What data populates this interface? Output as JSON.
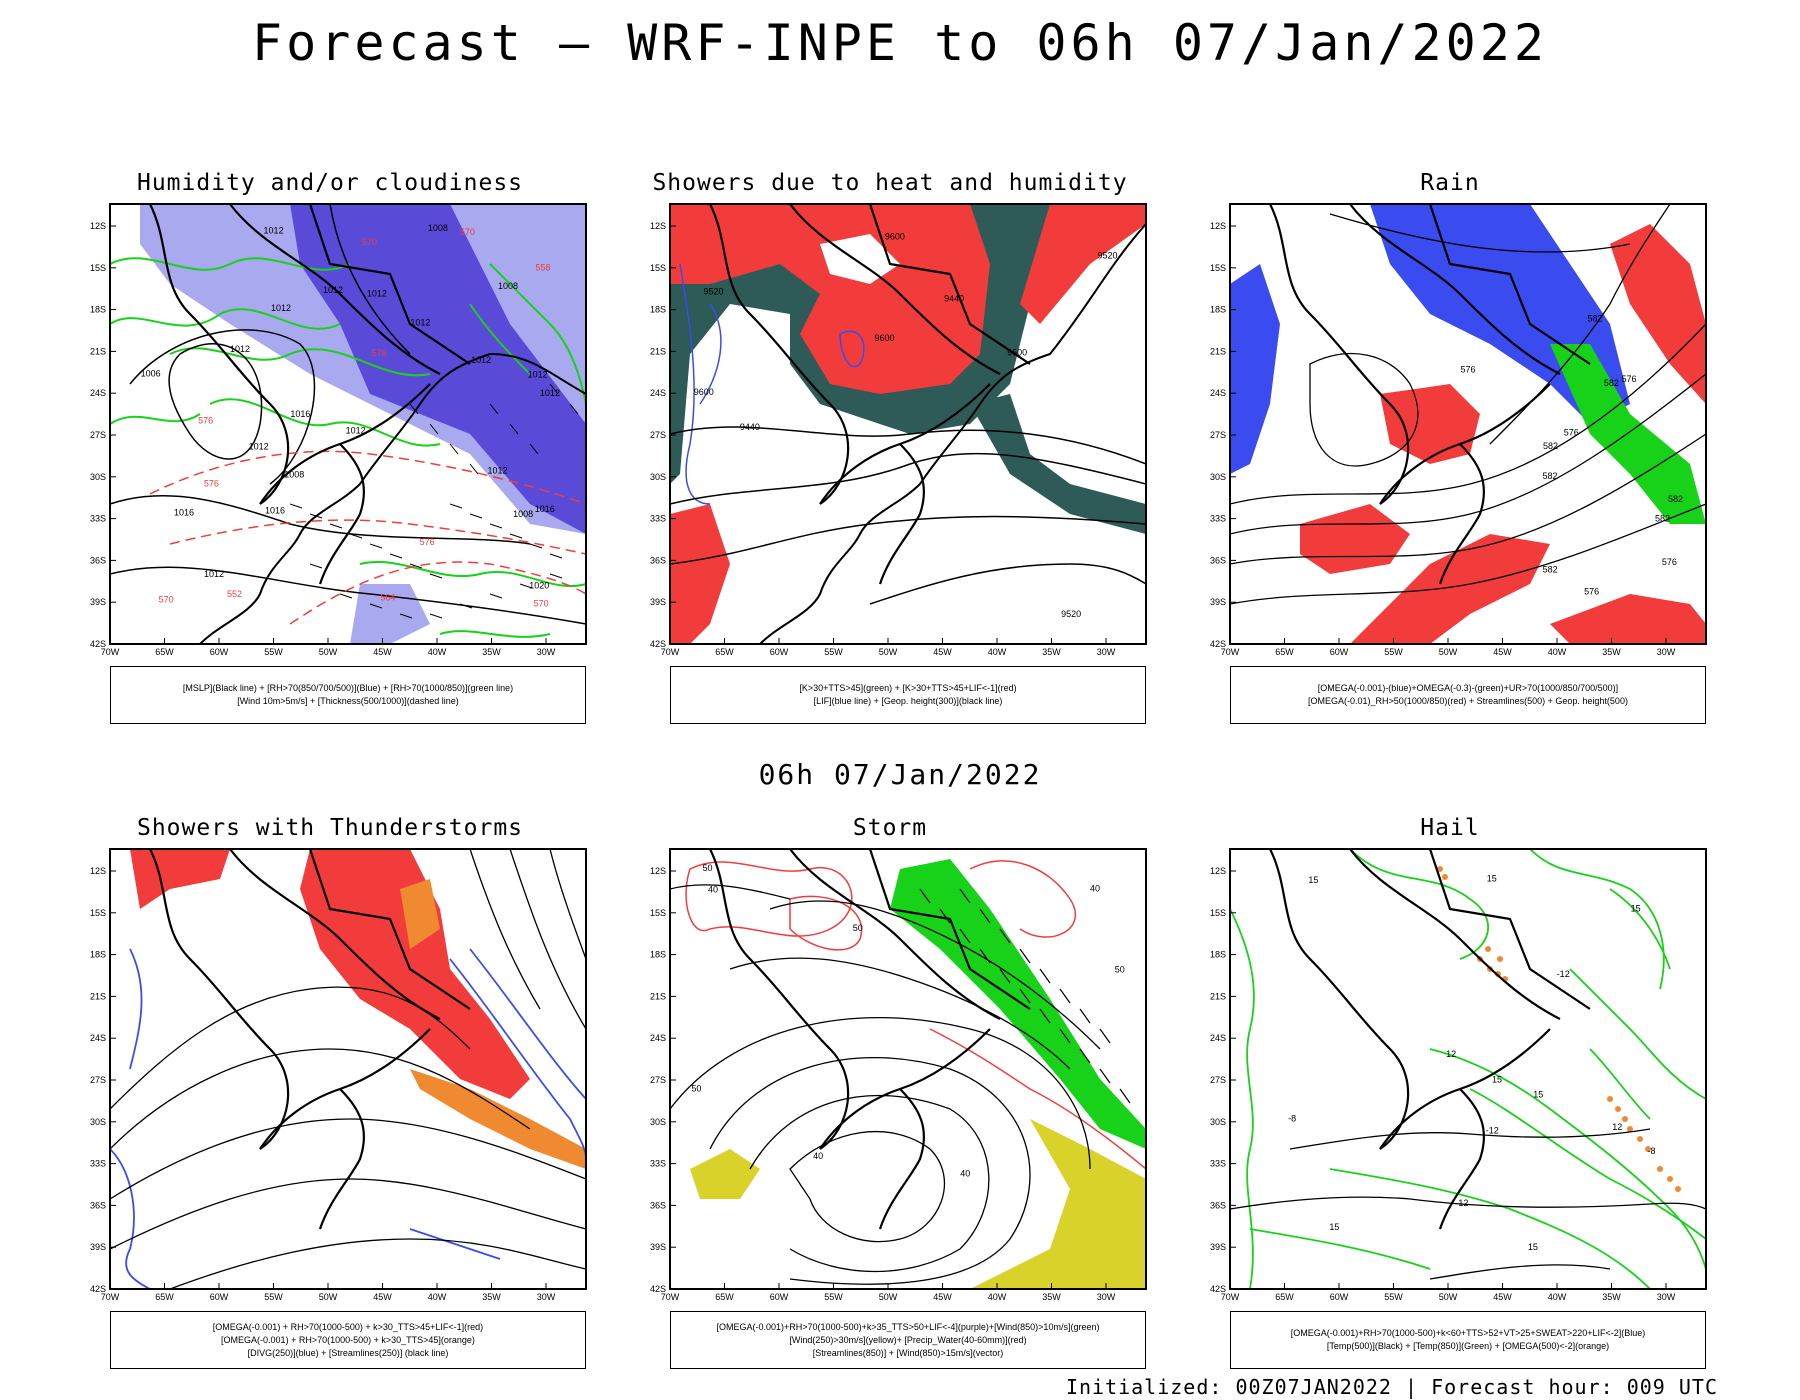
{
  "title": "Forecast — WRF-INPE to 06h 07/Jan/2022",
  "middle_title": "06h 07/Jan/2022",
  "footer": "Initialized: 00Z07JAN2022 | Forecast hour: 009 UTC",
  "axes": {
    "lat_labels": [
      "12S",
      "15S",
      "18S",
      "21S",
      "24S",
      "27S",
      "30S",
      "33S",
      "36S",
      "39S",
      "42S"
    ],
    "lon_labels": [
      "70W",
      "65W",
      "60W",
      "55W",
      "50W",
      "45W",
      "40W",
      "35W",
      "30W"
    ]
  },
  "colors": {
    "red": "#f23c3c",
    "blue": "#3a4cf0",
    "green": "#18d21a",
    "orange": "#f08a30",
    "yellow": "#d8d22a",
    "teal": "#2e5a58",
    "lavender": "#a9a9f0",
    "purple": "#5a4ad8"
  },
  "panels": [
    {
      "title": "Humidity and/or cloudiness",
      "legend": [
        "[MSLP](Black line) + [RH>70(850/700/500)](Blue) + [RH>70(1000/850)](green line)",
        "[Wind 10m>5m/s] + [Thickness(500/1000)](dashed line)"
      ],
      "contour_labels": [
        "1012",
        "1012",
        "1012",
        "1012",
        "1016",
        "1016",
        "1008",
        "1008",
        "1008",
        "1008",
        "1012",
        "1012",
        "1012",
        "1016",
        "1016",
        "1012",
        "1012",
        "1006",
        "1012",
        "1012",
        "1020",
        "1012",
        "1012"
      ],
      "red_labels": [
        "576",
        "576",
        "570",
        "570",
        "576",
        "564",
        "558",
        "552",
        "570",
        "576",
        "570"
      ]
    },
    {
      "title": "Showers due to heat and humidity",
      "legend": [
        "[K>30+TTS>45](green) + [K>30+TTS>45+LIF<-1](red)",
        "[LIF](blue line) + [Geop. height(300)](black line)"
      ],
      "contour_labels": [
        "9600",
        "9600",
        "9600",
        "9520",
        "9520",
        "9520",
        "9440",
        "9440",
        "9600"
      ]
    },
    {
      "title": "Rain",
      "legend": [
        "[OMEGA(-0.001)-(blue)+OMEGA(-0.3)-(green)+UR>70(1000/850/700/500)]",
        "[OMEGA(-0.01)_RH>50(1000/850)(red) + Streamlines(500) + Geop. height(500)"
      ],
      "contour_labels": [
        "582",
        "582",
        "582",
        "582",
        "582",
        "582",
        "576",
        "576",
        "576",
        "576",
        "576",
        "582"
      ]
    },
    {
      "title": "Showers with Thunderstorms",
      "legend": [
        "[OMEGA(-0.001) + RH>70(1000-500) + k>30_TTS>45+LIF<-1](red)",
        "[OMEGA(-0.001) + RH>70(1000-500) + k>30_TTS>45](orange)",
        "[DIVG(250)](blue) + [Streamlines(250)] (black line)"
      ]
    },
    {
      "title": "Storm",
      "legend": [
        "[OMEGA(-0.001)+RH>70(1000-500)+k>35_TTS>50+LIF<-4](purple)+[Wind(850)>10m/s](green)",
        "[Wind(250)>30m/s](yellow)+ [Precip_Water(40-60mm)](red)",
        "[Streamlines(850)] + [Wind(850)>15m/s](vector)"
      ],
      "contour_labels": [
        "40",
        "50",
        "50",
        "40",
        "50",
        "40",
        "50",
        "40"
      ]
    },
    {
      "title": "Hail",
      "legend": [
        "[OMEGA(-0.001)+RH>70(1000-500)+k<60+TTS>52+VT>25+SWEAT>220+LIF<-2](Blue)",
        "[Temp(500)](Black) + [Temp(850)](Green) + [OMEGA(500)<-2](orange)"
      ],
      "contour_labels": [
        "-12",
        "-12",
        "-8",
        "-8",
        "15",
        "15",
        "15",
        "15",
        "15",
        "15",
        "12",
        "12",
        "12",
        "15"
      ]
    }
  ]
}
